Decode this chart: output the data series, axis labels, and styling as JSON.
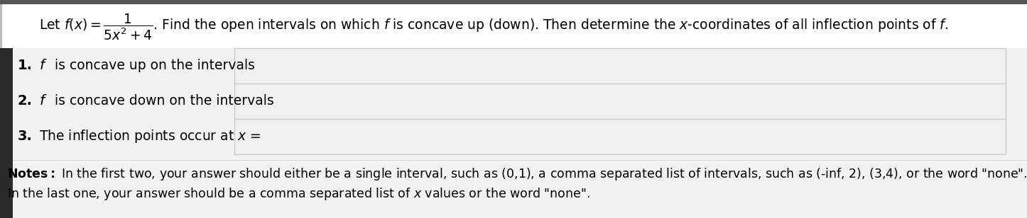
{
  "background_color": "#f5f5f5",
  "header_bg_color": "#ffffff",
  "top_bar_color": "#555555",
  "left_stripe_color": "#3a3a3a",
  "header_formula": "Let $f(x) = \\dfrac{1}{5x^2+4}$.",
  "header_rest": " Find the open intervals on which $f$ is concave up (down). Then determine the $x$-coordinates of all inflection points of $f$.",
  "header_fontsize": 13.5,
  "items": [
    {
      "number": "1.",
      "label_parts": [
        "$f$",
        " is concave up on the intervals"
      ],
      "bold_f": true
    },
    {
      "number": "2.",
      "label_parts": [
        "$f$",
        " is concave down on the intervals"
      ],
      "bold_f": true
    },
    {
      "number": "3.",
      "label_parts": [
        "",
        "The inflection points occur at $x$ ="
      ],
      "bold_f": false
    }
  ],
  "item_fontsize": 13.5,
  "number_fontsize": 14,
  "box_fill_color": "#f0f0f0",
  "box_edge_color": "#cccccc",
  "notes_bold": "Notes:",
  "notes_line1_rest": " In the first two, your answer should either be a single interval, such as (0,1), a comma separated list of intervals, such as (-inf, 2), (3,4), or the word \"none\".",
  "notes_line2": "In the last one, your answer should be a comma separated list of $x$ values or the word \"none\".",
  "notes_fontsize": 12.5
}
